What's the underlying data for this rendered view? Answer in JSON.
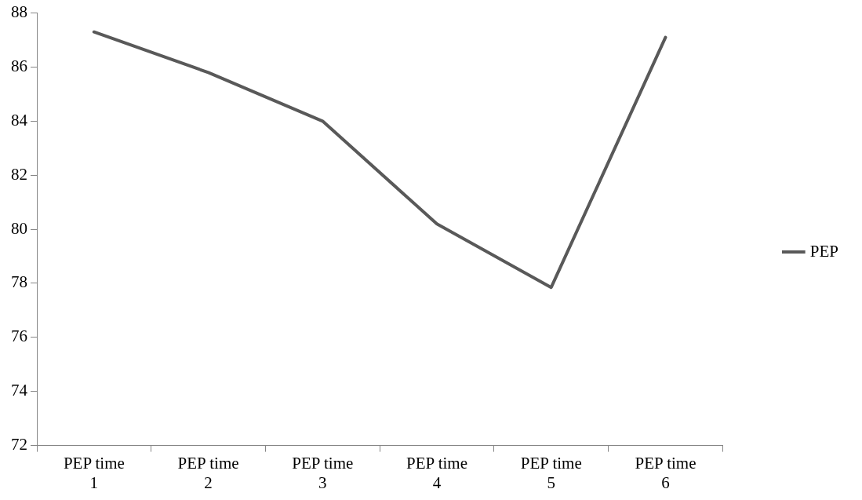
{
  "chart_data": {
    "type": "line",
    "categories": [
      "PEP time 1",
      "PEP time 2",
      "PEP time 3",
      "PEP time 4",
      "PEP time 5",
      "PEP time 6"
    ],
    "series": [
      {
        "name": "PEP",
        "color": "#595959",
        "values": [
          87.3,
          85.8,
          84.0,
          80.2,
          77.85,
          87.1
        ]
      }
    ],
    "ylim": [
      72,
      88
    ],
    "yticks": [
      72,
      74,
      76,
      78,
      80,
      82,
      84,
      86,
      88
    ],
    "grid": false,
    "legend": "right",
    "marker": "none",
    "line_style": "solid"
  }
}
